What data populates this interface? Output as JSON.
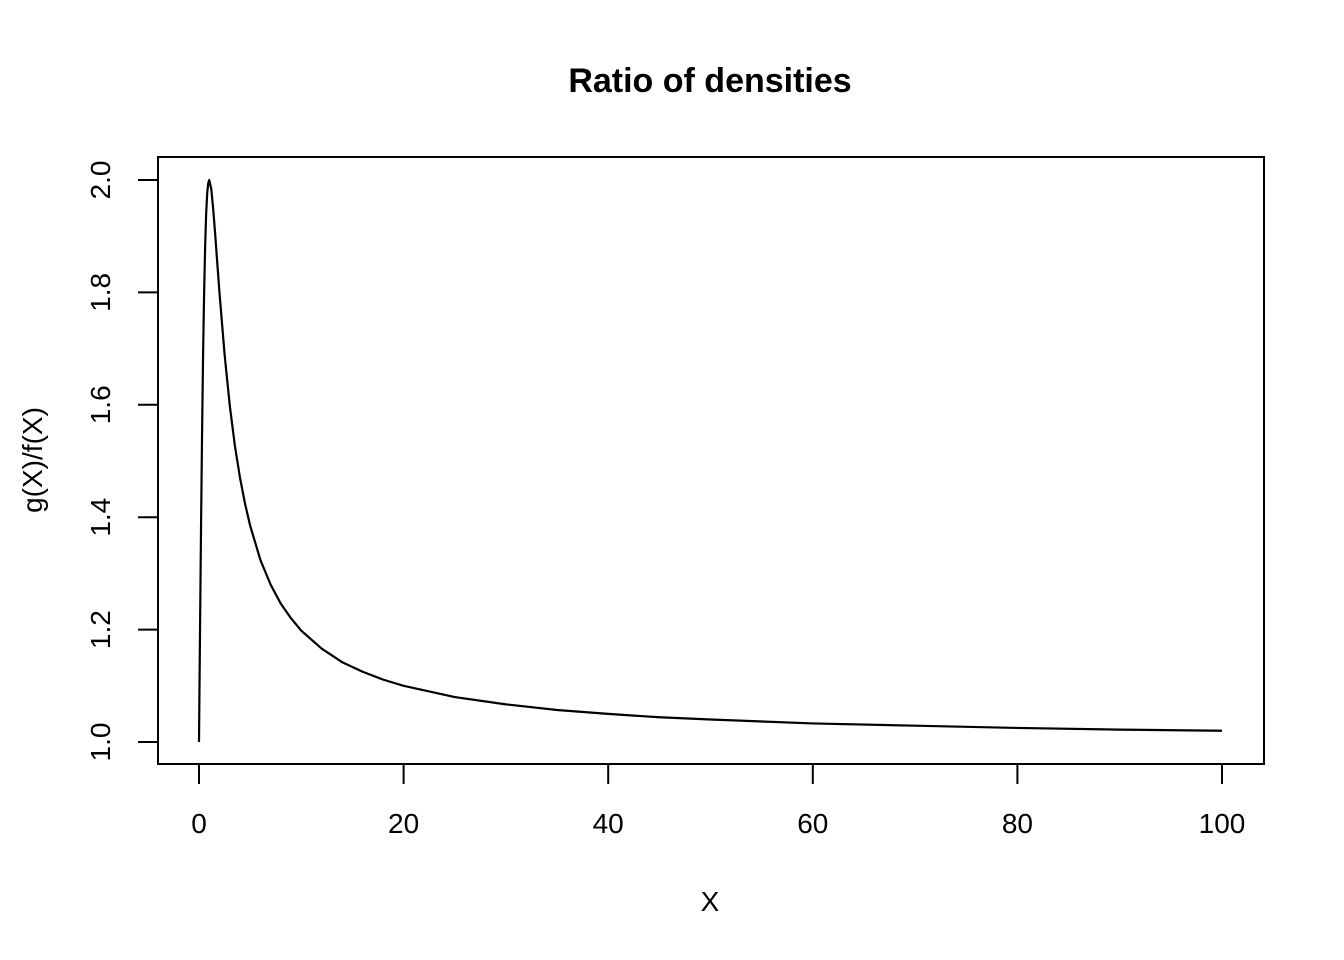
{
  "chart_data": {
    "type": "line",
    "title": "Ratio of densities",
    "xlabel": "X",
    "ylabel": "g(X)/f(X)",
    "xlim": [
      0,
      100
    ],
    "ylim": [
      1.0,
      2.0
    ],
    "x_ticks": [
      0,
      20,
      40,
      60,
      80,
      100
    ],
    "y_ticks": [
      1.0,
      1.2,
      1.4,
      1.6,
      1.8,
      2.0
    ],
    "x_tick_labels": [
      "0",
      "20",
      "40",
      "60",
      "80",
      "100"
    ],
    "y_tick_labels": [
      "1.0",
      "1.2",
      "1.4",
      "1.6",
      "1.8",
      "2.0"
    ],
    "grid": false,
    "line_color": "#000000",
    "series": [
      {
        "x": [
          0,
          0.1,
          0.2,
          0.3,
          0.4,
          0.5,
          0.6,
          0.7,
          0.8,
          0.9,
          1.0,
          1.2,
          1.4,
          1.6,
          1.8,
          2.0,
          2.5,
          3,
          3.5,
          4,
          4.5,
          5,
          6,
          7,
          8,
          9,
          10,
          12,
          14,
          16,
          18,
          20,
          25,
          30,
          35,
          40,
          45,
          50,
          60,
          70,
          80,
          90,
          100
        ],
        "y": [
          1.0,
          1.198,
          1.385,
          1.55,
          1.69,
          1.8,
          1.882,
          1.94,
          1.976,
          1.994,
          2.0,
          1.984,
          1.946,
          1.899,
          1.849,
          1.8,
          1.69,
          1.6,
          1.528,
          1.471,
          1.424,
          1.385,
          1.324,
          1.28,
          1.246,
          1.22,
          1.198,
          1.166,
          1.142,
          1.125,
          1.111,
          1.1,
          1.08,
          1.067,
          1.057,
          1.05,
          1.044,
          1.04,
          1.033,
          1.029,
          1.025,
          1.022,
          1.02
        ]
      }
    ]
  }
}
